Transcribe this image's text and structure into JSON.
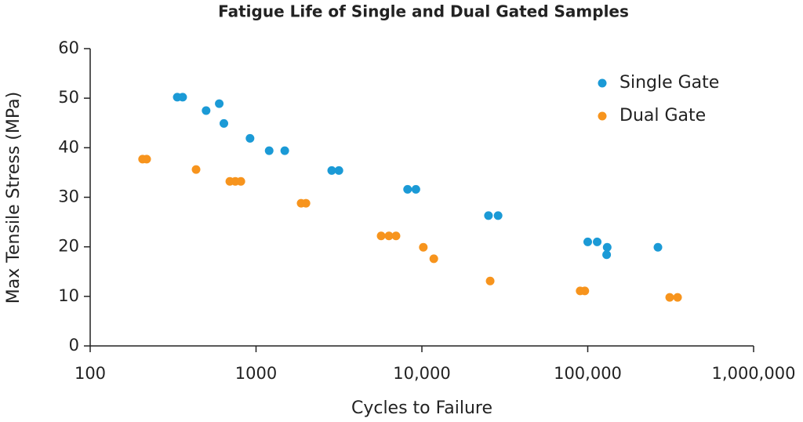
{
  "chart_data": {
    "type": "scatter",
    "title": "Fatigue Life of Single and Dual Gated Samples",
    "x_label": "Cycles to Failure",
    "y_label": "Max Tensile Stress (MPa)",
    "x_scale": "log",
    "xlim": [
      100,
      1000000
    ],
    "xticks": [
      100,
      1000,
      {
        "value": 10000,
        "label": "10,000"
      },
      {
        "value": 100000,
        "label": "100,000"
      },
      {
        "value": 1000000,
        "label": "1,000,000"
      }
    ],
    "ylim": [
      0,
      60
    ],
    "yticks": [
      0,
      10,
      20,
      30,
      40,
      50,
      60
    ],
    "grid": false,
    "legend": "upper-right",
    "series": [
      {
        "name": "Single Gate",
        "color": "#1b9ad6",
        "x": [
          335,
          361,
          500,
          600,
          640,
          920,
          1200,
          1490,
          2860,
          3160,
          8200,
          9200,
          25200,
          28800,
          100000,
          114000,
          131000,
          130000,
          265000
        ],
        "values": [
          50.2,
          50.2,
          47.5,
          48.9,
          44.9,
          41.9,
          39.4,
          39.4,
          35.4,
          35.4,
          31.6,
          31.6,
          26.3,
          26.3,
          21,
          21,
          19.9,
          18.4,
          19.9
        ]
      },
      {
        "name": "Dual Gate",
        "color": "#f7941d",
        "x": [
          207,
          219,
          435,
          695,
          750,
          810,
          1870,
          2000,
          5680,
          6330,
          6980,
          10200,
          11800,
          25800,
          90000,
          96000,
          312000,
          348000
        ],
        "values": [
          37.7,
          37.7,
          35.6,
          33.2,
          33.2,
          33.2,
          28.8,
          28.8,
          22.2,
          22.2,
          22.2,
          19.9,
          17.6,
          13.1,
          11.1,
          11.1,
          9.8,
          9.8
        ]
      }
    ]
  }
}
